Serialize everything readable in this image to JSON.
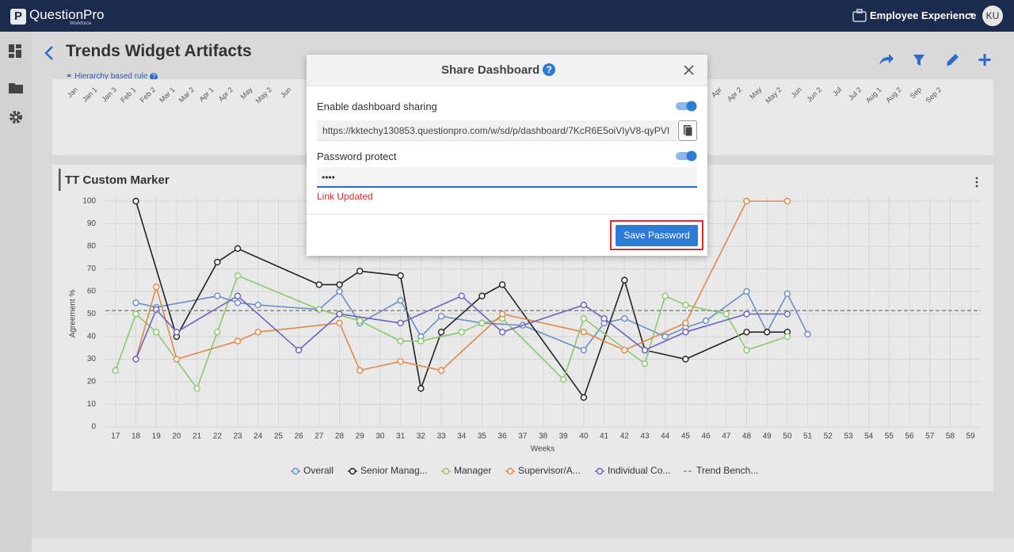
{
  "header": {
    "brand": "QuestionPro",
    "brand_sub": "Workforce",
    "product": "Employee Experience",
    "avatar": "KU"
  },
  "page": {
    "title": "Trends Widget Artifacts",
    "subtitle": "Hierarchy based rule",
    "top_axis_labels": [
      "Jan",
      "Jan 1",
      "Jan 3",
      "Feb 1",
      "Feb 2",
      "Mar 1",
      "Mar 2",
      "Apr 1",
      "Apr 2",
      "May",
      "May 2",
      "Jun",
      "Apr",
      "Apr 2",
      "May",
      "May 2",
      "Jun",
      "Jun 2",
      "Jul",
      "Jul 2",
      "Aug 1",
      "Aug 2",
      "Sep",
      "Sep 2"
    ]
  },
  "widget": {
    "title": "TT Custom Marker"
  },
  "chart_data": {
    "type": "line",
    "x_label": "Weeks",
    "y_label": "Agreement %",
    "xlim": [
      16.5,
      59.5
    ],
    "xticks": [
      17,
      18,
      19,
      20,
      21,
      22,
      23,
      24,
      25,
      26,
      27,
      28,
      29,
      30,
      31,
      32,
      33,
      34,
      35,
      36,
      37,
      38,
      39,
      40,
      41,
      42,
      43,
      44,
      45,
      46,
      47,
      48,
      49,
      50,
      51,
      52,
      53,
      54,
      55,
      56,
      57,
      58,
      59
    ],
    "ylim": [
      0,
      100
    ],
    "yticks": [
      0,
      10,
      20,
      30,
      40,
      50,
      60,
      70,
      80,
      90,
      100
    ],
    "grid": true,
    "series": [
      {
        "name": "Overall",
        "color": "#6a8fc6",
        "x": [
          18,
          19,
          22,
          23,
          24,
          27,
          28,
          29,
          31,
          32,
          33,
          35,
          37,
          40,
          41,
          42,
          44,
          45,
          46,
          48,
          49,
          50,
          51
        ],
        "values": [
          55,
          53,
          58,
          55,
          54,
          52,
          60,
          46,
          56,
          40,
          49,
          46,
          45,
          34,
          46,
          48,
          40,
          44,
          47,
          60,
          42,
          59,
          41
        ]
      },
      {
        "name": "Senior Manag...",
        "color": "#222222",
        "x": [
          18,
          20,
          22,
          23,
          27,
          28,
          29,
          31,
          32,
          33,
          35,
          36,
          40,
          42,
          43,
          45,
          48,
          49,
          50
        ],
        "values": [
          100,
          40,
          73,
          79,
          63,
          63,
          69,
          67,
          17,
          42,
          58,
          63,
          13,
          65,
          34,
          30,
          42,
          42,
          42
        ]
      },
      {
        "name": "Manager",
        "color": "#8cc86e",
        "x": [
          17,
          18,
          19,
          21,
          22,
          23,
          27,
          29,
          31,
          32,
          34,
          35,
          36,
          39,
          40,
          43,
          44,
          45,
          47,
          48,
          50
        ],
        "values": [
          25,
          50,
          42,
          17,
          42,
          67,
          52,
          47,
          38,
          38,
          42,
          46,
          48,
          21,
          48,
          28,
          58,
          54,
          50,
          34,
          40
        ]
      },
      {
        "name": "Supervisor/A...",
        "color": "#e08a4a",
        "x": [
          18,
          19,
          20,
          23,
          24,
          28,
          29,
          31,
          33,
          36,
          40,
          42,
          45,
          48,
          50
        ],
        "values": [
          30,
          62,
          30,
          38,
          42,
          46,
          25,
          29,
          25,
          50,
          42,
          34,
          46,
          100,
          100
        ]
      },
      {
        "name": "Individual Co...",
        "color": "#6a64c0",
        "x": [
          18,
          19,
          20,
          23,
          26,
          28,
          31,
          34,
          36,
          40,
          41,
          43,
          45,
          48,
          50
        ],
        "values": [
          30,
          52,
          42,
          58,
          34,
          50,
          46,
          58,
          42,
          54,
          48,
          34,
          42,
          50,
          50
        ]
      },
      {
        "name": "Trend Bench...",
        "color": "#888888",
        "dashed": true,
        "values": [
          51.5
        ]
      }
    ]
  },
  "modal": {
    "title": "Share Dashboard",
    "enable_label": "Enable dashboard sharing",
    "enable_on": true,
    "url": "https://kktechy130853.questionpro.com/w/sd/p/dashboard/7KcR6E5oiVIyV8-qyPVI",
    "password_label": "Password protect",
    "password_on": true,
    "password_value": "••••",
    "status": "Link Updated",
    "save_button": "Save Password"
  }
}
